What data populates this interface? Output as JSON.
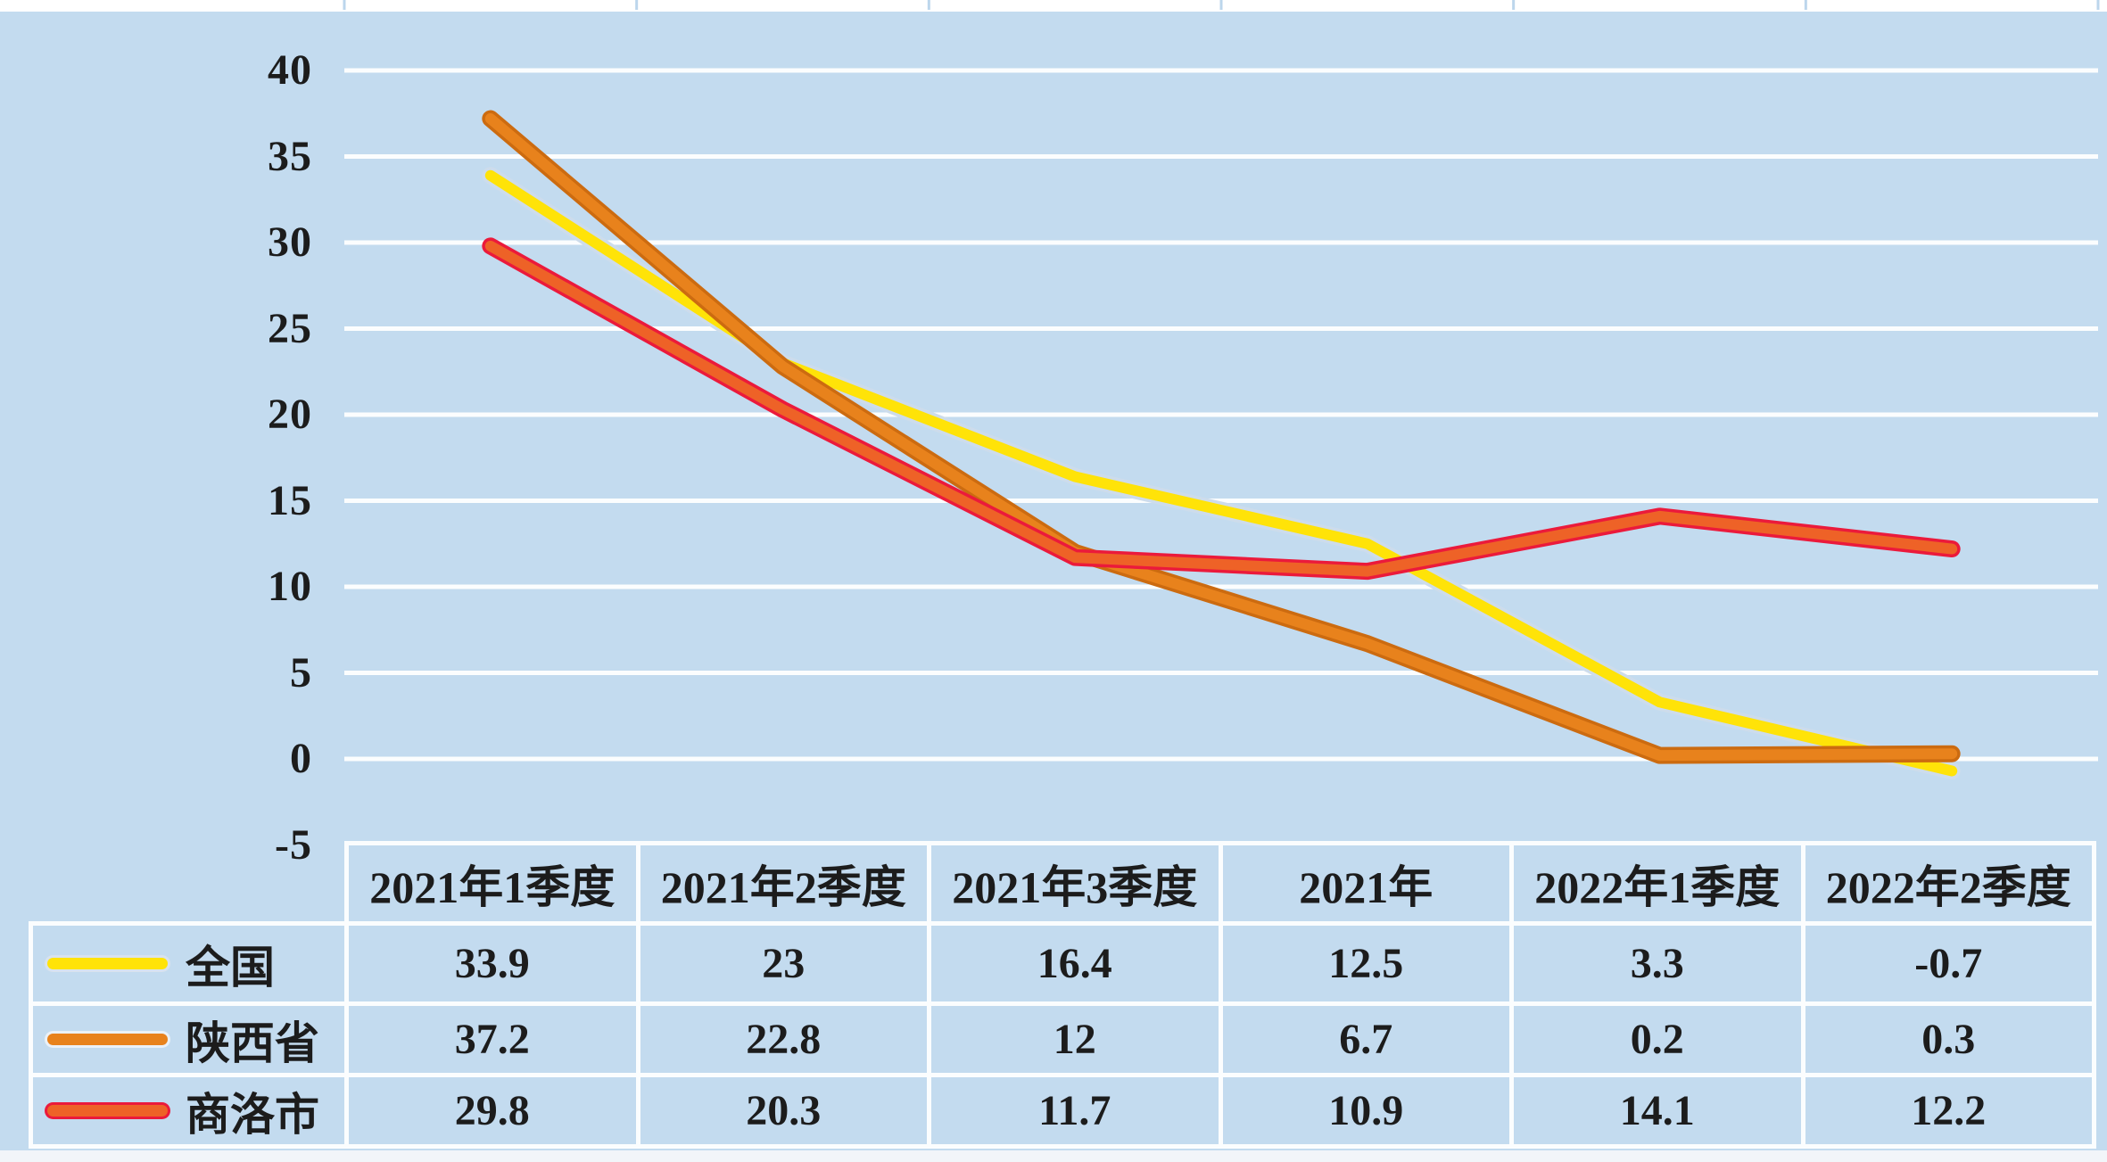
{
  "chart_data": {
    "type": "line",
    "title": "",
    "xlabel": "",
    "ylabel": "",
    "categories": [
      "2021年1季度",
      "2021年2季度",
      "2021年3季度",
      "2021年",
      "2022年1季度",
      "2022年2季度"
    ],
    "series": [
      {
        "name": "全国",
        "values": [
          33.9,
          23,
          16.4,
          12.5,
          3.3,
          -0.7
        ],
        "color": "#FFE308",
        "edge_color": "#CDDCEB",
        "swatch_edge": "#D8E2EE"
      },
      {
        "name": "陕西省",
        "values": [
          37.2,
          22.8,
          12,
          6.7,
          0.2,
          0.3
        ],
        "color": "#E8821C",
        "edge_color": "#CC6B10",
        "swatch_edge": "#EBF1F7"
      },
      {
        "name": "商洛市",
        "values": [
          29.8,
          20.3,
          11.7,
          10.9,
          14.1,
          12.2
        ],
        "color": "#EE6227",
        "edge_color": "#EB1A3B",
        "swatch_edge": "#EB1A3B"
      }
    ],
    "ylim": [
      -5,
      40
    ],
    "ytick_step": 5,
    "yticks": [
      "40",
      "35",
      "30",
      "25",
      "20",
      "15",
      "10",
      "5",
      "0",
      "-5"
    ],
    "grid": true,
    "gridline_color": "#FBFDFE",
    "plot_background": "#C3DBEF",
    "legend_position": "table-rows-left"
  },
  "table": {
    "headers": [
      "2021年1季度",
      "2021年2季度",
      "2021年3季度",
      "2021年",
      "2022年1季度",
      "2022年2季度"
    ],
    "rows": [
      {
        "label": "全国",
        "values": [
          "33.9",
          "23",
          "16.4",
          "12.5",
          "3.3",
          "-0.7"
        ]
      },
      {
        "label": "陕西省",
        "values": [
          "37.2",
          "22.8",
          "12",
          "6.7",
          "0.2",
          "0.3"
        ]
      },
      {
        "label": "商洛市",
        "values": [
          "29.8",
          "20.3",
          "11.7",
          "10.9",
          "14.1",
          "12.2"
        ]
      }
    ]
  },
  "colors": {
    "background": "#C3DBEF",
    "table_border": "#FBFDFE",
    "text": "#1C1C1C",
    "top_strip": "#FFFFFF",
    "top_strip_tick": "#BCD6EC",
    "bottom_strip": "#F2F5F9"
  }
}
